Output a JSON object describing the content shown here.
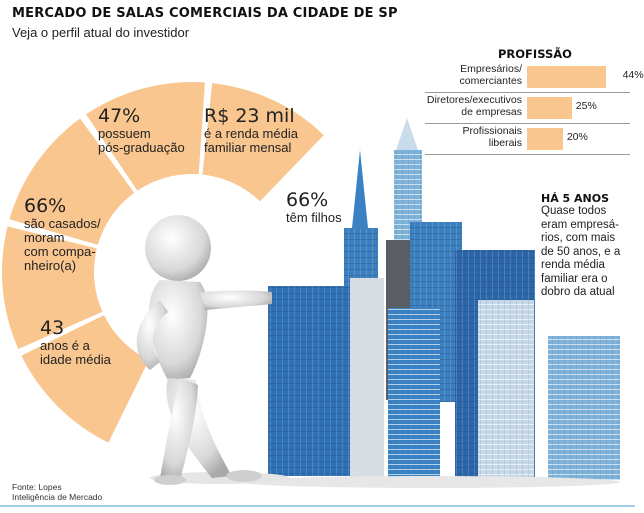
{
  "title": "MERCADO DE SALAS COMERCIAIS DA CIDADE DE SP",
  "subtitle": "Veja o perfil atual do investidor",
  "colors": {
    "segment": "#f9c68f",
    "accent_bar": "#f9c68f",
    "building_blue": "#2f6fb3"
  },
  "chart_data": [
    {
      "type": "pie",
      "segments": [
        {
          "value": "43",
          "text": "anos é a idade média"
        },
        {
          "value": "66%",
          "text": "são casados/ moram com companheiro(a)"
        },
        {
          "value": "47%",
          "text": "possuem pós-graduação"
        },
        {
          "value": "R$ 23 mil",
          "text": "é a renda média familiar mensal"
        },
        {
          "value": "66%",
          "text": "têm filhos"
        }
      ]
    },
    {
      "type": "bar",
      "title": "PROFISSÃO",
      "categories": [
        "Empresários/ comerciantes",
        "Diretores/executivos de empresas",
        "Profissionais liberais"
      ],
      "values": [
        44,
        25,
        20
      ],
      "value_labels": [
        "44%",
        "25%",
        "20%"
      ],
      "xlim": [
        0,
        50
      ]
    }
  ],
  "segments_display": [
    {
      "big": "43",
      "lines": [
        "anos é a",
        "idade média"
      ]
    },
    {
      "big": "66%",
      "lines": [
        "são casados/",
        "moram",
        "com compa-",
        "nheiro(a)"
      ]
    },
    {
      "big": "47%",
      "lines": [
        "possuem",
        "pós-graduação"
      ]
    },
    {
      "big": "R$ 23 mil",
      "lines": [
        "é a renda média",
        "familiar mensal"
      ]
    },
    {
      "big": "66%",
      "lines": [
        "têm filhos"
      ]
    }
  ],
  "profession_display": [
    [
      "Empresários/",
      "comerciantes"
    ],
    [
      "Diretores/executivos",
      "de empresas"
    ],
    [
      "Profissionais",
      "liberais"
    ]
  ],
  "note": {
    "head": "HÁ 5 ANOS",
    "lines": [
      "Quase todos",
      "eram empresá-",
      "rios, com mais",
      "de 50 anos, e a",
      "renda média",
      "familiar era o",
      "dobro da atual"
    ]
  },
  "source": {
    "line1": "Fonte: Lopes",
    "line2": "Inteligência de Mercado"
  }
}
